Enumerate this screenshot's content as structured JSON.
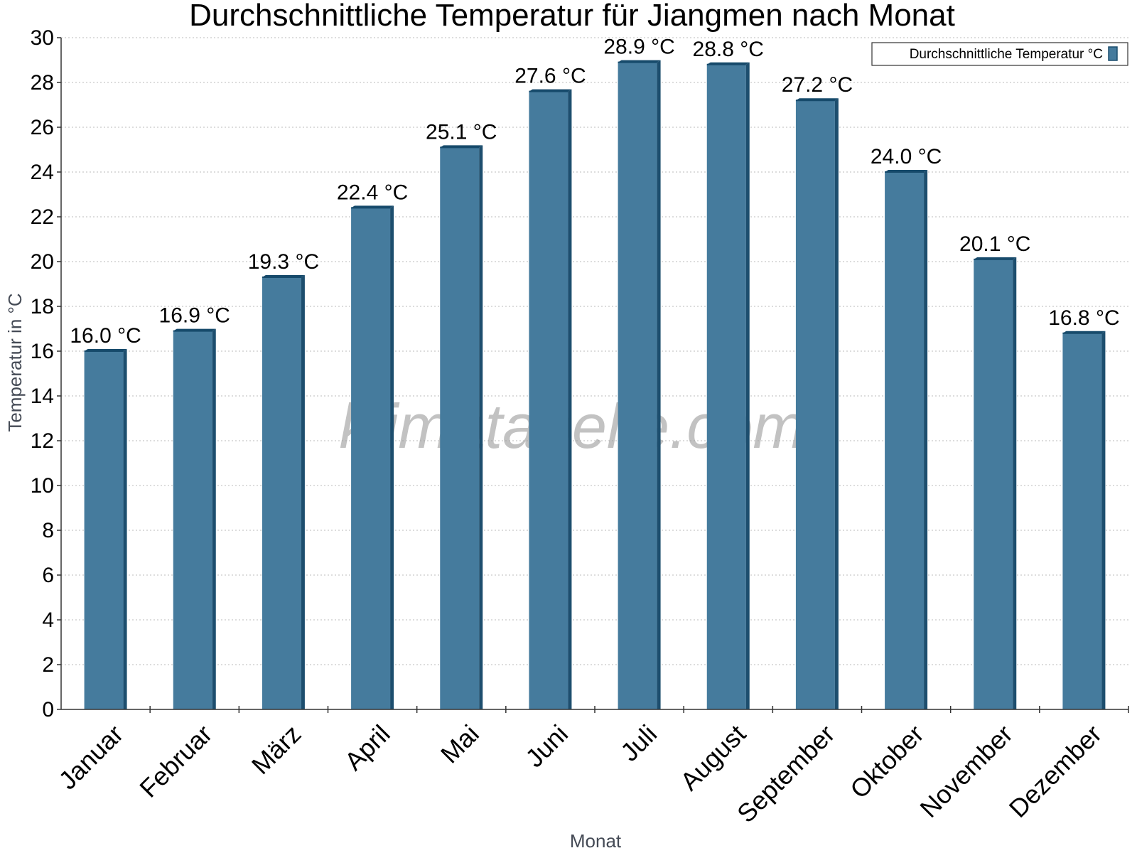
{
  "watermark": "klimatabelle.com",
  "colors": {
    "bar_front": "#457b9d",
    "bar_side": "#1d4e6e",
    "bar_top": "#164a6b",
    "grid": "#bbbbbb"
  },
  "chart_data": {
    "type": "bar",
    "title": "Durchschnittliche Temperatur für Jiangmen nach Monat",
    "xlabel": "Monat",
    "ylabel": "Temperatur in °C",
    "categories": [
      "Januar",
      "Februar",
      "März",
      "April",
      "Mai",
      "Juni",
      "Juli",
      "August",
      "September",
      "Oktober",
      "November",
      "Dezember"
    ],
    "series": [
      {
        "name": "Durchschnittliche Temperatur °C",
        "values": [
          16.0,
          16.9,
          19.3,
          22.4,
          25.1,
          27.6,
          28.9,
          28.8,
          27.2,
          24.0,
          20.1,
          16.8
        ],
        "data_labels": [
          "16.0 °C",
          "16.9 °C",
          "19.3 °C",
          "22.4 °C",
          "25.1 °C",
          "27.6 °C",
          "28.9 °C",
          "28.8 °C",
          "27.2 °C",
          "24.0 °C",
          "20.1 °C",
          "16.8 °C"
        ]
      }
    ],
    "ylim": [
      0,
      30
    ],
    "yticks": [
      0,
      2,
      4,
      6,
      8,
      10,
      12,
      14,
      16,
      18,
      20,
      22,
      24,
      26,
      28,
      30
    ],
    "grid": true,
    "legend_position": "top-right"
  }
}
